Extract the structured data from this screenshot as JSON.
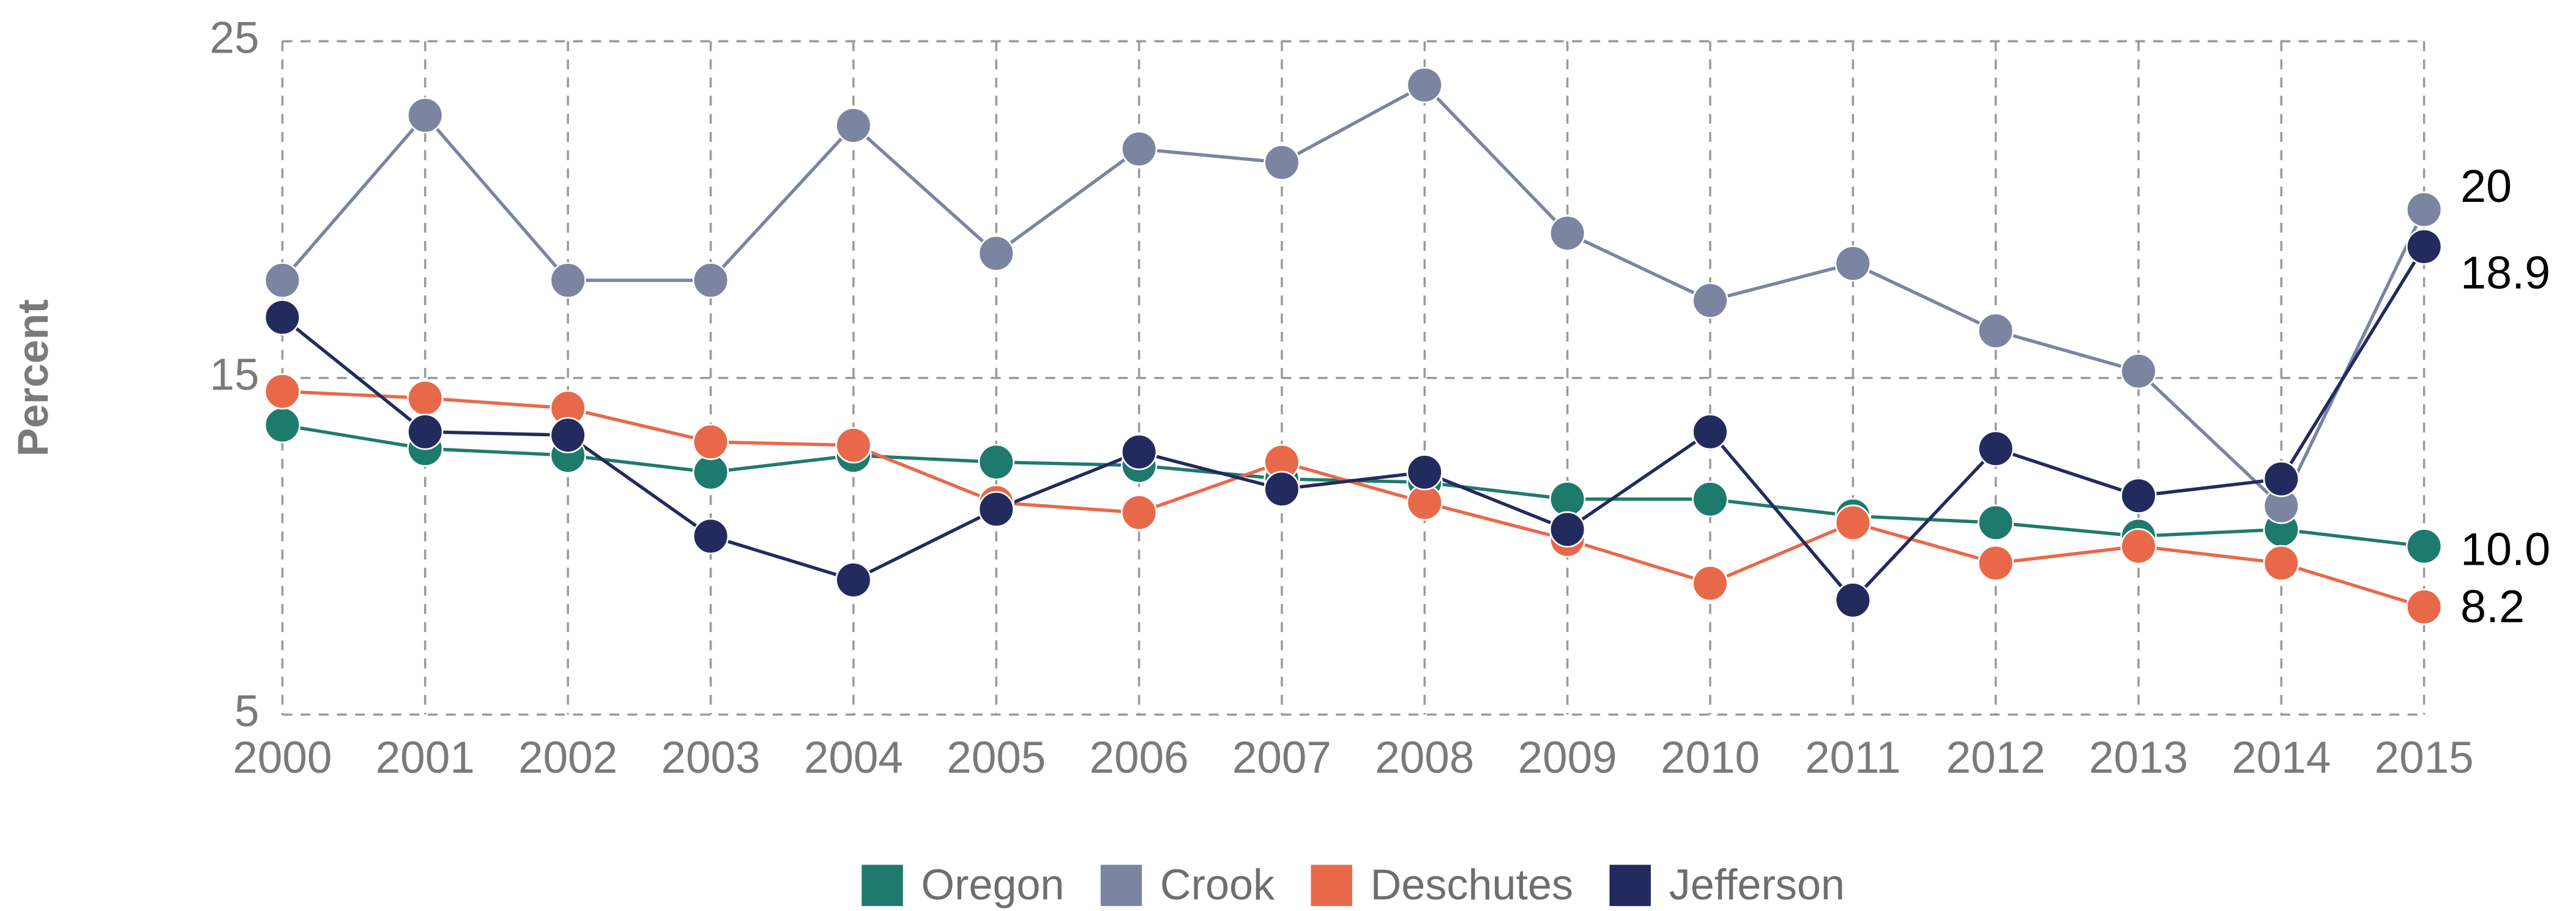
{
  "chart_data": {
    "type": "line",
    "y_label": "Percent",
    "x": [
      2000,
      2001,
      2002,
      2003,
      2004,
      2005,
      2006,
      2007,
      2008,
      2009,
      2010,
      2011,
      2012,
      2013,
      2014,
      2015
    ],
    "xlim": [
      2000,
      2015
    ],
    "xticks": [
      2000,
      2001,
      2002,
      2003,
      2004,
      2005,
      2006,
      2007,
      2008,
      2009,
      2010,
      2011,
      2012,
      2013,
      2014,
      2015
    ],
    "ylim": [
      5,
      25
    ],
    "yticks": [
      5,
      15,
      25
    ],
    "grid": true,
    "legend": "bottom",
    "series": [
      {
        "name": "Oregon",
        "color": "#1f7a6e",
        "values": [
          13.6,
          12.9,
          12.7,
          12.2,
          12.7,
          12.5,
          12.4,
          12.0,
          11.9,
          11.4,
          11.4,
          10.9,
          10.7,
          10.3,
          10.5,
          10.0
        ],
        "value_labels": [
          null,
          null,
          null,
          null,
          null,
          null,
          null,
          null,
          null,
          null,
          null,
          null,
          null,
          null,
          null,
          "10.0"
        ]
      },
      {
        "name": "Crook",
        "color": "#7b84a0",
        "values": [
          17.9,
          22.8,
          17.9,
          17.9,
          22.5,
          18.7,
          21.8,
          21.4,
          23.7,
          19.3,
          17.3,
          18.4,
          16.4,
          15.2,
          11.2,
          20
        ],
        "value_labels": [
          null,
          null,
          null,
          null,
          null,
          null,
          null,
          null,
          null,
          null,
          null,
          null,
          null,
          null,
          null,
          "20"
        ]
      },
      {
        "name": "Deschutes",
        "color": "#e8694a",
        "values": [
          14.6,
          14.4,
          14.1,
          13.1,
          13.0,
          11.3,
          11.0,
          12.5,
          11.3,
          10.2,
          8.9,
          10.7,
          9.5,
          10.0,
          9.5,
          8.2
        ],
        "value_labels": [
          null,
          null,
          null,
          null,
          null,
          null,
          null,
          null,
          null,
          null,
          null,
          null,
          null,
          null,
          null,
          "8.2"
        ]
      },
      {
        "name": "Jefferson",
        "color": "#232a5e",
        "values": [
          16.8,
          13.4,
          13.3,
          10.3,
          9.0,
          11.1,
          12.8,
          11.7,
          12.2,
          10.5,
          13.4,
          8.4,
          12.9,
          11.5,
          12.0,
          18.9
        ],
        "value_labels": [
          null,
          null,
          null,
          null,
          null,
          null,
          null,
          null,
          null,
          null,
          null,
          null,
          null,
          null,
          null,
          "18.9"
        ]
      }
    ]
  }
}
